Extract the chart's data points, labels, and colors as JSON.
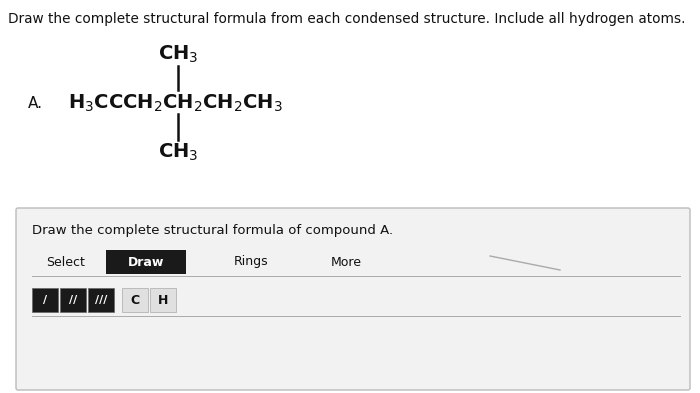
{
  "title_text": "Draw the complete structural formula from each condensed structure. Include all hydrogen atoms.",
  "label_A": "A.",
  "ch3_top": "CH$_3$",
  "ch3_bottom": "CH$_3$",
  "main_formula": "H$_3$CCCH$_2$CH$_2$CH$_2$CH$_3$",
  "bottom_section_text": "Draw the complete structural formula of compound A.",
  "toolbar_items": [
    "Select",
    "Draw",
    "Rings",
    "More"
  ],
  "bond_syms": [
    "/",
    "//",
    "///"
  ],
  "atom_syms": [
    "C",
    "H"
  ],
  "white": "#ffffff",
  "light_gray": "#e8e8e8",
  "black": "#111111",
  "draw_btn_bg": "#1a1a1a",
  "draw_btn_fg": "#ffffff",
  "bond_btn_bg": "#1a1a1a",
  "bond_btn_fg": "#ffffff",
  "atom_btn_bg": "#e0e0e0",
  "atom_btn_fg": "#111111",
  "box_bg": "#f2f2f2",
  "box_edge": "#bbbbbb",
  "ch3_fontsize": 14,
  "formula_fontsize": 14,
  "label_fontsize": 11,
  "title_fontsize": 9.8,
  "toolbar_fontsize": 9,
  "btn_fontsize": 10
}
